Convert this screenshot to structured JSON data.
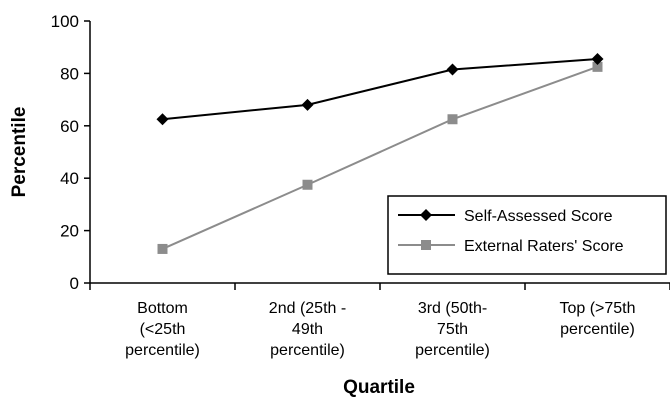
{
  "chart_data": {
    "type": "line",
    "title": "",
    "xlabel": "Quartile",
    "ylabel": "Percentile",
    "ylim": [
      0,
      100
    ],
    "yticks": [
      0,
      20,
      40,
      60,
      80,
      100
    ],
    "grid": false,
    "legend_position": "bottom-right",
    "categories": [
      [
        "Bottom",
        "(<25th",
        "percentile)"
      ],
      [
        "2nd (25th -",
        "49th",
        "percentile)"
      ],
      [
        "3rd (50th-",
        "75th",
        "percentile)"
      ],
      [
        "Top (>75th",
        "percentile)"
      ]
    ],
    "series": [
      {
        "name": "Self-Assessed Score",
        "values": [
          62.5,
          68,
          81.5,
          85.5
        ],
        "color": "#000000",
        "marker": "diamond"
      },
      {
        "name": "External Raters' Score",
        "values": [
          13,
          37.5,
          62.5,
          82.5
        ],
        "color": "#8c8c8c",
        "marker": "square"
      }
    ]
  }
}
